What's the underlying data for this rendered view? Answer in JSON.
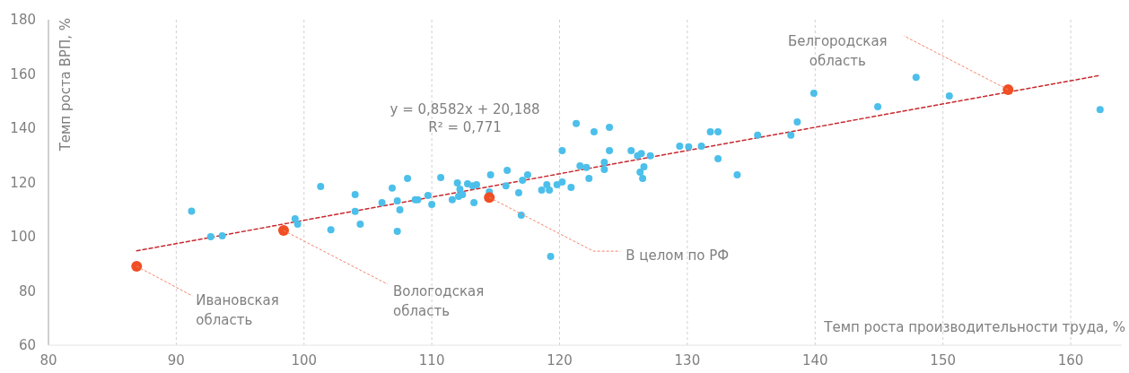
{
  "chart_data": {
    "type": "scatter",
    "xlabel": "Темп роста производительности труда, %",
    "ylabel": "Темп роста ВРП, %",
    "xlim": [
      80,
      164
    ],
    "xticks": [
      80,
      90,
      100,
      110,
      120,
      130,
      140,
      150,
      160
    ],
    "ylim": [
      60,
      180
    ],
    "yticks": [
      60,
      80,
      100,
      120,
      140,
      160,
      180
    ],
    "grid": "x",
    "marker": "circle",
    "series": [
      {
        "color": "#4cbfea",
        "x": [
          91.2,
          92.7,
          93.6,
          99.3,
          99.5,
          101.3,
          102.1,
          104.0,
          104.0,
          104.4,
          106.1,
          106.9,
          107.3,
          107.5,
          107.3,
          108.1,
          108.7,
          108.9,
          109.7,
          110.0,
          110.7,
          111.6,
          112.0,
          112.2,
          112.1,
          112.4,
          112.8,
          113.2,
          113.5,
          113.3,
          114.5,
          114.6,
          115.8,
          115.9,
          116.8,
          117.1,
          117.5,
          117.0,
          119.3,
          118.6,
          119.0,
          119.2,
          119.8,
          120.2,
          120.9,
          120.2,
          121.3,
          121.6,
          122.1,
          122.3,
          122.7,
          123.5,
          123.5,
          123.9,
          123.9,
          125.6,
          126.1,
          126.4,
          126.3,
          126.6,
          126.5,
          127.1,
          129.4,
          130.1,
          131.1,
          131.8,
          132.4,
          132.4,
          133.9,
          135.5,
          138.1,
          138.6,
          139.9,
          144.9,
          147.9,
          150.5,
          162.3
        ],
        "values": [
          109.4,
          100.0,
          100.3,
          106.6,
          104.6,
          118.5,
          102.6,
          115.5,
          109.3,
          104.6,
          112.6,
          117.9,
          113.2,
          109.9,
          102.0,
          121.5,
          113.6,
          113.6,
          115.2,
          111.9,
          121.8,
          113.6,
          119.8,
          117.5,
          114.9,
          115.5,
          119.5,
          118.8,
          119.2,
          112.6,
          116.5,
          122.8,
          118.8,
          124.5,
          116.2,
          120.8,
          122.8,
          107.9,
          92.7,
          117.2,
          119.2,
          117.2,
          119.2,
          120.2,
          118.2,
          131.7,
          141.7,
          126.1,
          125.5,
          121.5,
          138.7,
          127.4,
          124.8,
          140.3,
          131.7,
          131.7,
          129.8,
          130.7,
          123.8,
          125.8,
          121.5,
          129.8,
          133.4,
          133.1,
          133.4,
          138.7,
          138.7,
          128.8,
          122.8,
          137.4,
          137.4,
          142.3,
          152.9,
          147.9,
          158.8,
          151.9,
          146.9
        ]
      },
      {
        "color": "#f04e23",
        "x": [
          86.9,
          98.4,
          114.5,
          155.1
        ],
        "values": [
          89.1,
          102.3,
          114.5,
          154.2
        ]
      },
      {
        "type": "line",
        "color": "#c8282d",
        "line_style": "dashed",
        "marker": "none",
        "x": [
          86.9,
          162.3
        ],
        "values": [
          94.8,
          159.5
        ]
      }
    ],
    "annotations": [
      {
        "text": "Ивановская\nобласть",
        "x": 86.9,
        "y": 89.1
      },
      {
        "text": "Вологодская\nобласть",
        "x": 98.4,
        "y": 102.3
      },
      {
        "text": "В целом по РФ",
        "x": 114.5,
        "y": 114.5
      },
      {
        "text": "Белгородская\nобласть",
        "x": 155.1,
        "y": 154.2
      },
      "y = 0,8582x + 20,188",
      "R² = 0,771"
    ]
  }
}
